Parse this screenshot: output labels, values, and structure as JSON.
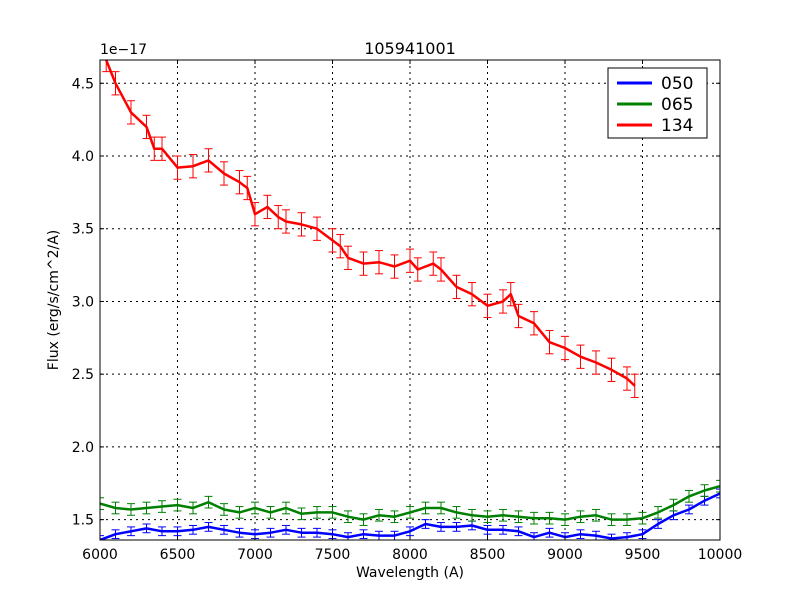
{
  "chart_data": {
    "type": "line",
    "title": "105941001",
    "xlabel": "Wavelength (A)",
    "ylabel": "Flux (erg/s/cm^2/A)",
    "y_offset_label": "1e−17",
    "xlim": [
      6000,
      10000
    ],
    "ylim": [
      1.36,
      4.66
    ],
    "xticks": [
      6000,
      6500,
      7000,
      7500,
      8000,
      8500,
      9000,
      9500,
      10000
    ],
    "yticks": [
      1.5,
      2.0,
      2.5,
      3.0,
      3.5,
      4.0,
      4.5
    ],
    "ytick_labels": [
      "1.5",
      "2.0",
      "2.5",
      "3.0",
      "3.5",
      "4.0",
      "4.5"
    ],
    "grid": true,
    "legend_position": "upper right",
    "errorbars": true,
    "series": [
      {
        "name": "050",
        "color": "#0000ff",
        "x": [
          6000,
          6100,
          6200,
          6300,
          6400,
          6500,
          6600,
          6700,
          6800,
          6900,
          7000,
          7100,
          7200,
          7300,
          7400,
          7500,
          7600,
          7700,
          7800,
          7900,
          8000,
          8100,
          8200,
          8300,
          8400,
          8500,
          8600,
          8700,
          8800,
          8900,
          9000,
          9100,
          9200,
          9300,
          9400,
          9500,
          9600,
          9700,
          9800,
          9900,
          10000
        ],
        "values": [
          1.36,
          1.4,
          1.42,
          1.44,
          1.42,
          1.42,
          1.43,
          1.45,
          1.43,
          1.41,
          1.4,
          1.41,
          1.43,
          1.41,
          1.41,
          1.4,
          1.38,
          1.4,
          1.39,
          1.39,
          1.42,
          1.47,
          1.45,
          1.45,
          1.46,
          1.43,
          1.43,
          1.42,
          1.38,
          1.41,
          1.38,
          1.4,
          1.39,
          1.37,
          1.38,
          1.4,
          1.47,
          1.53,
          1.57,
          1.63,
          1.68
        ],
        "error": 0.03
      },
      {
        "name": "065",
        "color": "#008000",
        "x": [
          6000,
          6100,
          6200,
          6300,
          6400,
          6500,
          6600,
          6700,
          6800,
          6900,
          7000,
          7100,
          7200,
          7300,
          7400,
          7500,
          7600,
          7700,
          7800,
          7900,
          8000,
          8100,
          8200,
          8300,
          8400,
          8500,
          8600,
          8700,
          8800,
          8900,
          9000,
          9100,
          9200,
          9300,
          9400,
          9500,
          9600,
          9700,
          9800,
          9900,
          10000
        ],
        "values": [
          1.61,
          1.58,
          1.57,
          1.58,
          1.59,
          1.6,
          1.58,
          1.62,
          1.57,
          1.55,
          1.58,
          1.55,
          1.58,
          1.54,
          1.55,
          1.55,
          1.52,
          1.5,
          1.53,
          1.52,
          1.55,
          1.58,
          1.58,
          1.55,
          1.53,
          1.52,
          1.53,
          1.52,
          1.51,
          1.51,
          1.5,
          1.52,
          1.53,
          1.5,
          1.5,
          1.51,
          1.55,
          1.6,
          1.66,
          1.7,
          1.73
        ],
        "error": 0.04
      },
      {
        "name": "134",
        "color": "#ff0000",
        "x": [
          6040,
          6100,
          6200,
          6300,
          6350,
          6400,
          6500,
          6600,
          6700,
          6800,
          6900,
          6950,
          7000,
          7080,
          7150,
          7200,
          7300,
          7400,
          7500,
          7550,
          7600,
          7700,
          7800,
          7900,
          8000,
          8050,
          8150,
          8200,
          8300,
          8400,
          8500,
          8600,
          8650,
          8700,
          8800,
          8900,
          9000,
          9100,
          9200,
          9300,
          9400,
          9450
        ],
        "values": [
          4.66,
          4.5,
          4.3,
          4.2,
          4.05,
          4.05,
          3.92,
          3.93,
          3.97,
          3.88,
          3.82,
          3.78,
          3.6,
          3.65,
          3.58,
          3.55,
          3.53,
          3.5,
          3.42,
          3.38,
          3.3,
          3.26,
          3.27,
          3.24,
          3.28,
          3.22,
          3.26,
          3.22,
          3.1,
          3.05,
          2.97,
          3.0,
          3.05,
          2.9,
          2.85,
          2.72,
          2.68,
          2.62,
          2.58,
          2.53,
          2.47,
          2.42
        ],
        "error": 0.08
      }
    ]
  }
}
